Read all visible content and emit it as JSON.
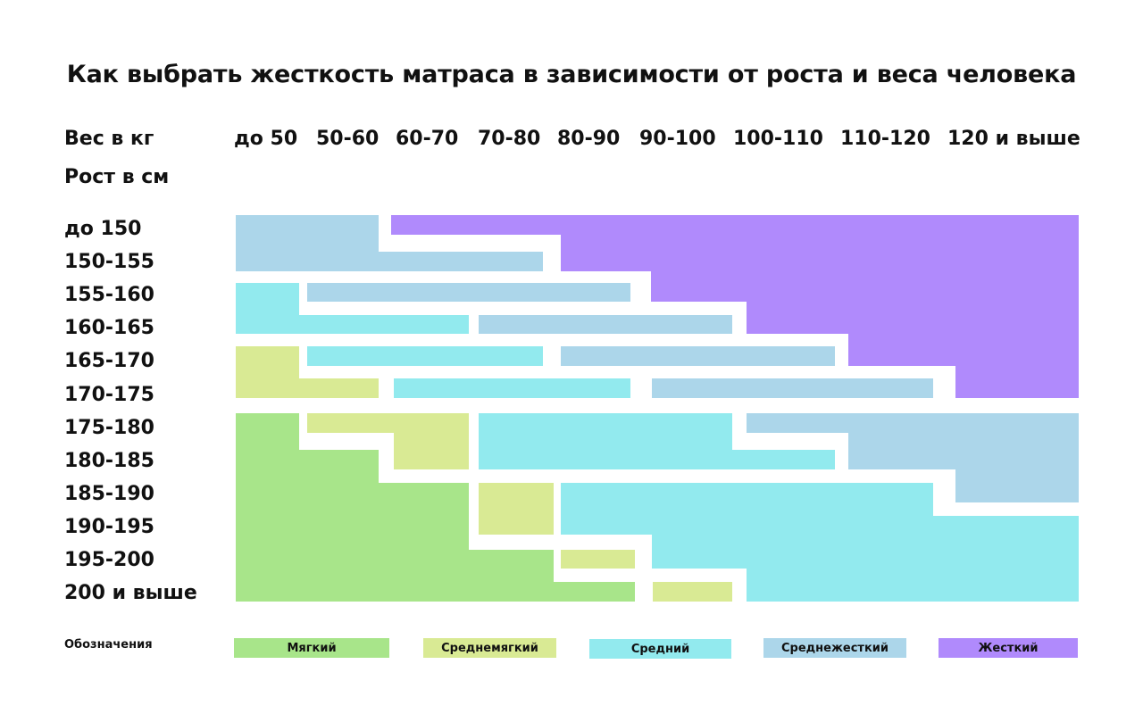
{
  "title": "Как выбрать жесткость матраса в зависимости от роста и веса человека",
  "chart_data": {
    "type": "heatmap",
    "title": "Как выбрать жесткость матраса в зависимости от роста и веса человека",
    "xlabel": "Вес в кг",
    "ylabel": "Рост в см",
    "x_categories": [
      "до 50",
      "50-60",
      "60-70",
      "70-80",
      "80-90",
      "90-100",
      "100-110",
      "110-120",
      "120 и выше"
    ],
    "y_categories": [
      "до 150",
      "150-155",
      "155-160",
      "160-165",
      "165-170",
      "170-175",
      "175-180",
      "180-185",
      "185-190",
      "190-195",
      "195-200",
      "200 и выше"
    ],
    "legend_title": "Обозначения",
    "legend": [
      {
        "key": "soft",
        "label": "Мягкий",
        "color": "#a8e58a"
      },
      {
        "key": "medium_soft",
        "label": "Среднемягкий",
        "color": "#d9ea94"
      },
      {
        "key": "medium",
        "label": "Средний",
        "color": "#92eaee"
      },
      {
        "key": "medium_firm",
        "label": "Среднежесткий",
        "color": "#acd6ea"
      },
      {
        "key": "firm",
        "label": "Жесткий",
        "color": "#b08afc"
      }
    ]
  }
}
